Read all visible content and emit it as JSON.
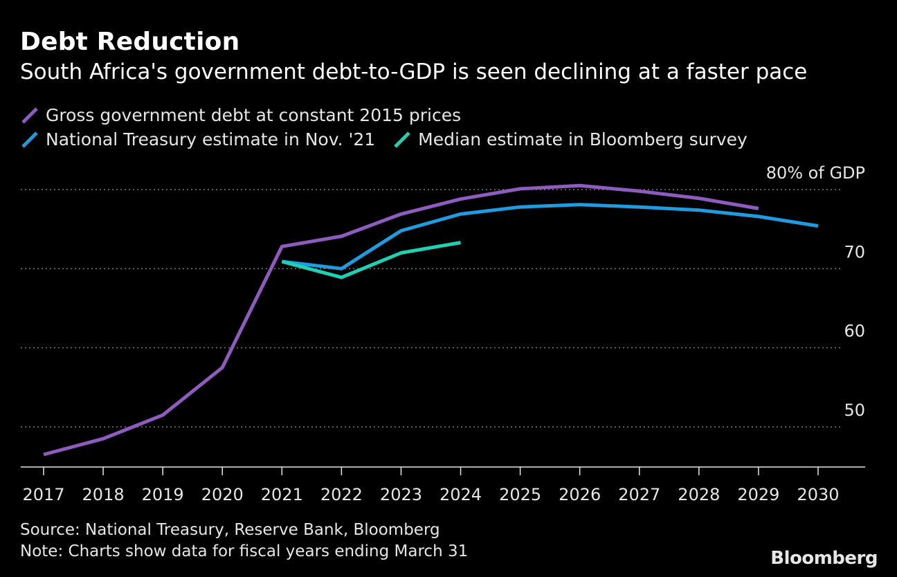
{
  "chart_data": {
    "type": "line",
    "title": "Debt Reduction",
    "subtitle": "South Africa's government debt-to-GDP is seen declining at a faster pace",
    "x": [
      2017,
      2018,
      2019,
      2020,
      2021,
      2022,
      2023,
      2024,
      2025,
      2026,
      2027,
      2028,
      2029,
      2030
    ],
    "series": [
      {
        "name": "Gross government debt at constant 2015 prices",
        "color": "#8e5bbf",
        "x": [
          2017,
          2018,
          2019,
          2020,
          2021,
          2022,
          2023,
          2024,
          2025,
          2026,
          2027,
          2028,
          2029
        ],
        "values": [
          46.5,
          48.5,
          51.5,
          57.5,
          72.8,
          74.1,
          76.9,
          78.8,
          80.1,
          80.5,
          79.8,
          78.9,
          77.6
        ]
      },
      {
        "name": "National Treasury estimate in Nov. '21",
        "color": "#1f9be0",
        "x": [
          2021,
          2022,
          2023,
          2024,
          2025,
          2026,
          2027,
          2028,
          2029,
          2030
        ],
        "values": [
          70.9,
          70.0,
          74.8,
          76.9,
          77.8,
          78.1,
          77.8,
          77.4,
          76.6,
          75.4
        ]
      },
      {
        "name": "Median estimate in Bloomberg survey",
        "color": "#1fd1b4",
        "x": [
          2021,
          2022,
          2023,
          2024
        ],
        "values": [
          70.9,
          68.9,
          72.0,
          73.3
        ]
      }
    ],
    "y_ticks": [
      {
        "value": 80,
        "label": "80% of GDP"
      },
      {
        "value": 70,
        "label": "70"
      },
      {
        "value": 60,
        "label": "60"
      },
      {
        "value": 50,
        "label": "50"
      }
    ],
    "ylim": [
      45,
      85
    ],
    "xlim": [
      2017,
      2030
    ],
    "grid": true,
    "legend_placement": "top-left"
  },
  "footer": {
    "source": "Source: National Treasury, Reserve Bank, Bloomberg",
    "note": "Note: Charts show data for fiscal years ending March 31"
  },
  "brand": "Bloomberg"
}
